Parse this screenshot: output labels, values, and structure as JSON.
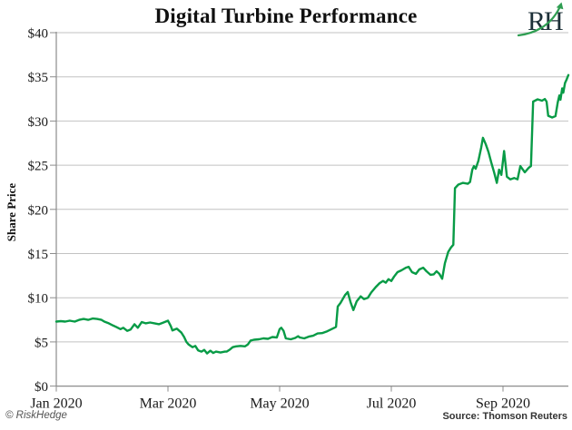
{
  "header": {
    "title": "Digital Turbine Performance"
  },
  "logo": {
    "text": "RH",
    "alt": "RiskHedge logo with green rising-arrow"
  },
  "footer": {
    "copyright": "© RiskHedge",
    "source": "Source: Thomson Reuters"
  },
  "colors": {
    "line_green": "#089b46",
    "logo_green": "#2f9e52",
    "logo_dark": "#1d3038",
    "gridline": "#c2c2c2",
    "axis": "#8c8c8c",
    "tick_text": "#1a1a1a",
    "background": "#ffffff"
  },
  "chart_data": {
    "type": "line",
    "title": "Digital Turbine Performance",
    "xlabel": "",
    "ylabel": "Share Price",
    "y_unit": "USD",
    "ylim": [
      0,
      40
    ],
    "grid": "horizontal",
    "legend": "none",
    "x_axis_note": "x = months since Jan 1 2020; axis spans Jan 2020 to early Oct 2020",
    "y_ticks": [
      {
        "label": "$0",
        "value": 0
      },
      {
        "label": "$5",
        "value": 5
      },
      {
        "label": "$10",
        "value": 10
      },
      {
        "label": "$15",
        "value": 15
      },
      {
        "label": "$20",
        "value": 20
      },
      {
        "label": "$25",
        "value": 25
      },
      {
        "label": "$30",
        "value": 30
      },
      {
        "label": "$35",
        "value": 35
      },
      {
        "label": "$40",
        "value": 40
      }
    ],
    "x_ticks": [
      {
        "label": "Jan 2020",
        "month": 0
      },
      {
        "label": "Mar 2020",
        "month": 2
      },
      {
        "label": "May 2020",
        "month": 4
      },
      {
        "label": "Jul 2020",
        "month": 6
      },
      {
        "label": "Sep 2020",
        "month": 8
      }
    ],
    "series": [
      {
        "name": "Digital Turbine share price",
        "color": "#089b46",
        "points": [
          [
            0.0,
            7.3
          ],
          [
            0.08,
            7.35
          ],
          [
            0.16,
            7.3
          ],
          [
            0.24,
            7.4
          ],
          [
            0.33,
            7.3
          ],
          [
            0.41,
            7.5
          ],
          [
            0.49,
            7.6
          ],
          [
            0.57,
            7.5
          ],
          [
            0.65,
            7.65
          ],
          [
            0.73,
            7.6
          ],
          [
            0.81,
            7.5
          ],
          [
            0.86,
            7.3
          ],
          [
            0.94,
            7.1
          ],
          [
            1.02,
            6.85
          ],
          [
            1.07,
            6.7
          ],
          [
            1.15,
            6.45
          ],
          [
            1.2,
            6.6
          ],
          [
            1.27,
            6.25
          ],
          [
            1.33,
            6.4
          ],
          [
            1.4,
            7.0
          ],
          [
            1.46,
            6.6
          ],
          [
            1.53,
            7.25
          ],
          [
            1.6,
            7.1
          ],
          [
            1.68,
            7.2
          ],
          [
            1.76,
            7.1
          ],
          [
            1.84,
            7.0
          ],
          [
            1.92,
            7.2
          ],
          [
            2.0,
            7.4
          ],
          [
            2.05,
            6.8
          ],
          [
            2.08,
            6.3
          ],
          [
            2.16,
            6.5
          ],
          [
            2.24,
            6.05
          ],
          [
            2.29,
            5.55
          ],
          [
            2.33,
            5.0
          ],
          [
            2.37,
            4.7
          ],
          [
            2.44,
            4.4
          ],
          [
            2.49,
            4.55
          ],
          [
            2.54,
            4.05
          ],
          [
            2.6,
            3.9
          ],
          [
            2.65,
            4.1
          ],
          [
            2.7,
            3.7
          ],
          [
            2.76,
            4.0
          ],
          [
            2.81,
            3.75
          ],
          [
            2.86,
            3.9
          ],
          [
            2.94,
            3.8
          ],
          [
            3.02,
            3.9
          ],
          [
            3.05,
            3.9
          ],
          [
            3.11,
            4.15
          ],
          [
            3.16,
            4.4
          ],
          [
            3.22,
            4.5
          ],
          [
            3.3,
            4.55
          ],
          [
            3.38,
            4.5
          ],
          [
            3.43,
            4.7
          ],
          [
            3.48,
            5.15
          ],
          [
            3.54,
            5.25
          ],
          [
            3.63,
            5.3
          ],
          [
            3.71,
            5.4
          ],
          [
            3.79,
            5.35
          ],
          [
            3.87,
            5.55
          ],
          [
            3.95,
            5.5
          ],
          [
            4.0,
            6.45
          ],
          [
            4.03,
            6.6
          ],
          [
            4.07,
            6.25
          ],
          [
            4.11,
            5.4
          ],
          [
            4.2,
            5.3
          ],
          [
            4.28,
            5.45
          ],
          [
            4.33,
            5.65
          ],
          [
            4.36,
            5.5
          ],
          [
            4.44,
            5.4
          ],
          [
            4.52,
            5.6
          ],
          [
            4.6,
            5.7
          ],
          [
            4.68,
            5.95
          ],
          [
            4.76,
            6.0
          ],
          [
            4.85,
            6.2
          ],
          [
            4.93,
            6.45
          ],
          [
            4.98,
            6.6
          ],
          [
            5.01,
            6.7
          ],
          [
            5.04,
            9.0
          ],
          [
            5.09,
            9.4
          ],
          [
            5.17,
            10.3
          ],
          [
            5.22,
            10.65
          ],
          [
            5.27,
            9.5
          ],
          [
            5.32,
            8.6
          ],
          [
            5.38,
            9.6
          ],
          [
            5.45,
            10.15
          ],
          [
            5.51,
            9.85
          ],
          [
            5.58,
            10.0
          ],
          [
            5.64,
            10.6
          ],
          [
            5.72,
            11.2
          ],
          [
            5.79,
            11.65
          ],
          [
            5.85,
            11.9
          ],
          [
            5.9,
            11.7
          ],
          [
            5.95,
            12.1
          ],
          [
            6.0,
            11.9
          ],
          [
            6.05,
            12.4
          ],
          [
            6.11,
            12.9
          ],
          [
            6.18,
            13.1
          ],
          [
            6.26,
            13.4
          ],
          [
            6.31,
            13.5
          ],
          [
            6.37,
            12.9
          ],
          [
            6.44,
            12.7
          ],
          [
            6.5,
            13.2
          ],
          [
            6.57,
            13.4
          ],
          [
            6.63,
            13.0
          ],
          [
            6.7,
            12.6
          ],
          [
            6.76,
            12.65
          ],
          [
            6.81,
            13.0
          ],
          [
            6.86,
            12.7
          ],
          [
            6.91,
            12.15
          ],
          [
            6.96,
            13.9
          ],
          [
            7.02,
            15.2
          ],
          [
            7.07,
            15.7
          ],
          [
            7.11,
            16.0
          ],
          [
            7.14,
            22.4
          ],
          [
            7.2,
            22.8
          ],
          [
            7.28,
            23.0
          ],
          [
            7.37,
            22.9
          ],
          [
            7.41,
            23.1
          ],
          [
            7.45,
            24.5
          ],
          [
            7.48,
            24.9
          ],
          [
            7.51,
            24.6
          ],
          [
            7.56,
            25.5
          ],
          [
            7.61,
            27.0
          ],
          [
            7.64,
            28.1
          ],
          [
            7.69,
            27.4
          ],
          [
            7.74,
            26.5
          ],
          [
            7.79,
            25.3
          ],
          [
            7.84,
            24.2
          ],
          [
            7.89,
            23.0
          ],
          [
            7.93,
            24.5
          ],
          [
            7.97,
            23.9
          ],
          [
            8.02,
            26.6
          ],
          [
            8.07,
            23.7
          ],
          [
            8.13,
            23.4
          ],
          [
            8.2,
            23.55
          ],
          [
            8.26,
            23.4
          ],
          [
            8.31,
            24.9
          ],
          [
            8.39,
            24.2
          ],
          [
            8.46,
            24.7
          ],
          [
            8.5,
            24.9
          ],
          [
            8.54,
            32.2
          ],
          [
            8.62,
            32.45
          ],
          [
            8.7,
            32.3
          ],
          [
            8.75,
            32.5
          ],
          [
            8.78,
            32.2
          ],
          [
            8.81,
            30.6
          ],
          [
            8.88,
            30.4
          ],
          [
            8.94,
            30.55
          ],
          [
            8.98,
            32.1
          ],
          [
            9.01,
            32.9
          ],
          [
            9.03,
            32.4
          ],
          [
            9.06,
            33.7
          ],
          [
            9.08,
            33.2
          ],
          [
            9.11,
            34.3
          ],
          [
            9.14,
            34.7
          ],
          [
            9.17,
            35.2
          ]
        ]
      }
    ]
  }
}
